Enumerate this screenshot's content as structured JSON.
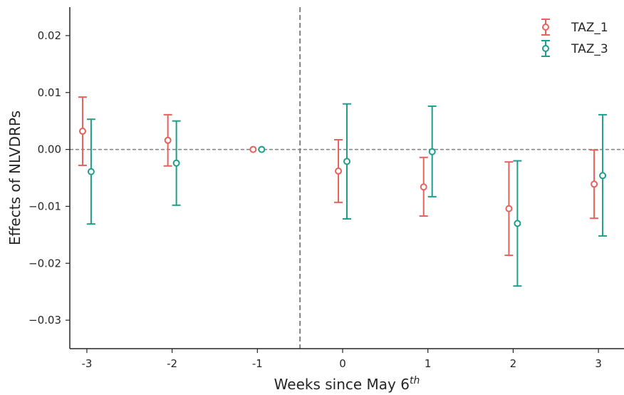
{
  "chart_data": {
    "type": "scatter",
    "title": "",
    "xlabel": "Weeks since May 6",
    "xlabel_superscript": "th",
    "ylabel": "Effects of NLVDRPs",
    "x_ticks": [
      "-3",
      "-2",
      "-1",
      "0",
      "1",
      "2",
      "3"
    ],
    "y_ticks": [
      "−0.03",
      "−0.02",
      "−0.01",
      "0.00",
      "0.01",
      "0.02"
    ],
    "xlim": [
      -3.2,
      3.3
    ],
    "ylim": [
      -0.035,
      0.025
    ],
    "reference_hline": 0.0,
    "reference_vline": -0.5,
    "grid": false,
    "legend_position": "top-right",
    "series": [
      {
        "name": "TAZ_1",
        "color": "#e5625e",
        "marker": "open-circle",
        "x_offset": -0.05,
        "points": [
          {
            "x": -3,
            "y": 0.0032,
            "lo": -0.0028,
            "hi": 0.0092
          },
          {
            "x": -2,
            "y": 0.0016,
            "lo": -0.0029,
            "hi": 0.0061
          },
          {
            "x": -1,
            "y": 0.0,
            "lo": 0.0,
            "hi": 0.0
          },
          {
            "x": 0,
            "y": -0.0038,
            "lo": -0.0093,
            "hi": 0.0017
          },
          {
            "x": 1,
            "y": -0.0066,
            "lo": -0.0117,
            "hi": -0.0014
          },
          {
            "x": 2,
            "y": -0.0104,
            "lo": -0.0186,
            "hi": -0.0022
          },
          {
            "x": 3,
            "y": -0.0061,
            "lo": -0.0121,
            "hi": -0.0001
          }
        ]
      },
      {
        "name": "TAZ_3",
        "color": "#1f9e89",
        "marker": "open-circle",
        "x_offset": 0.05,
        "points": [
          {
            "x": -3,
            "y": -0.0039,
            "lo": -0.0131,
            "hi": 0.0053
          },
          {
            "x": -2,
            "y": -0.0024,
            "lo": -0.0098,
            "hi": 0.005
          },
          {
            "x": -1,
            "y": 0.0,
            "lo": 0.0,
            "hi": 0.0
          },
          {
            "x": 0,
            "y": -0.0021,
            "lo": -0.0122,
            "hi": 0.008
          },
          {
            "x": 1,
            "y": -0.0004,
            "lo": -0.0083,
            "hi": 0.0076
          },
          {
            "x": 2,
            "y": -0.013,
            "lo": -0.024,
            "hi": -0.002
          },
          {
            "x": 3,
            "y": -0.0046,
            "lo": -0.0152,
            "hi": 0.0061
          }
        ]
      }
    ]
  }
}
